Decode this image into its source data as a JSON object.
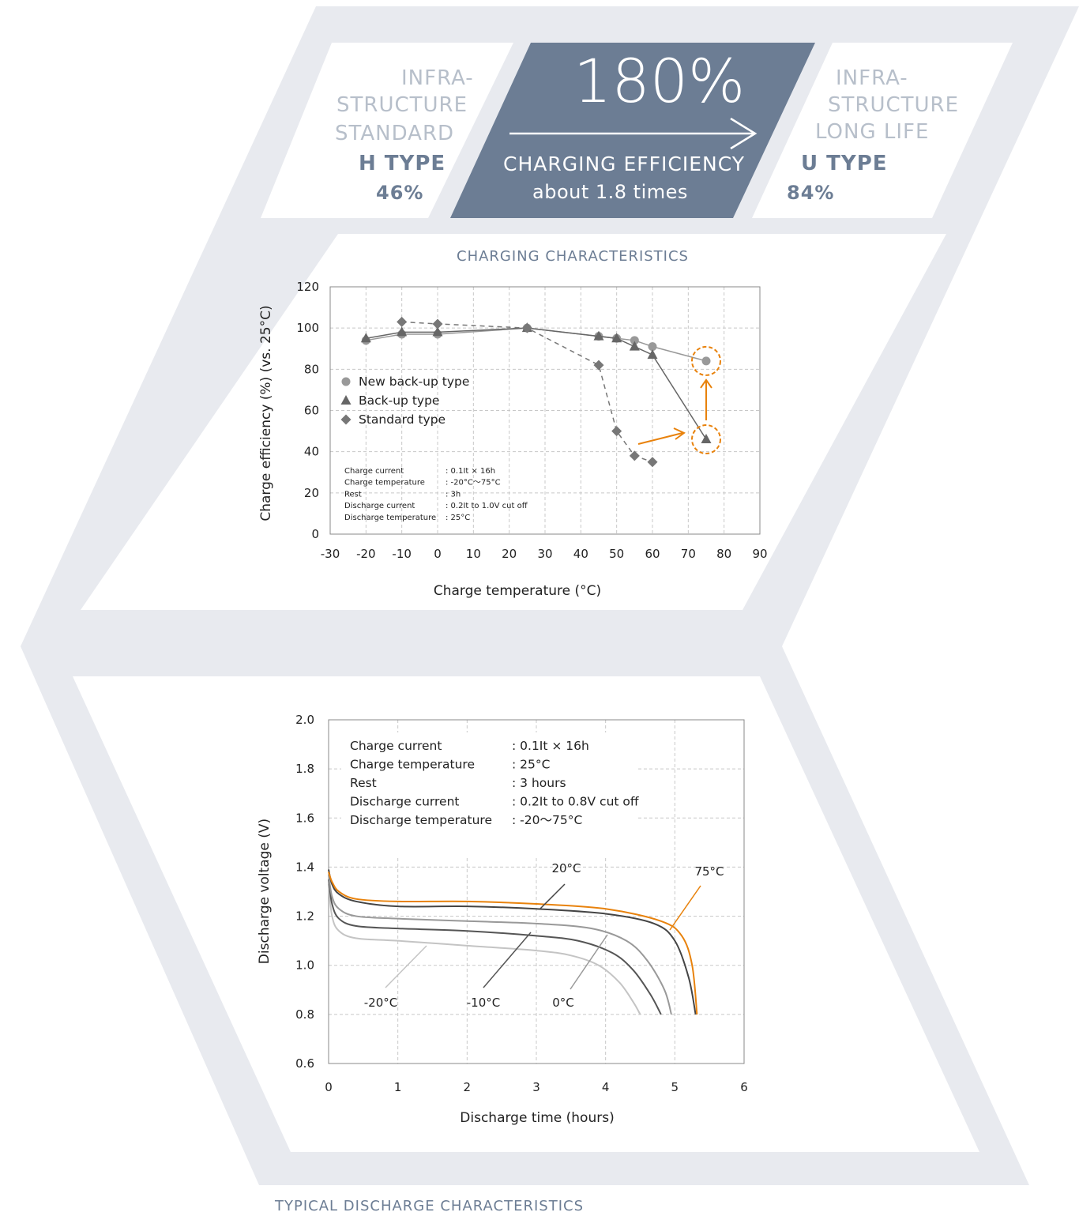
{
  "header": {
    "left": {
      "line1": "INFRA-",
      "line2": "STRUCTURE",
      "line3": "STANDARD",
      "type": "H TYPE",
      "value": "46%"
    },
    "middle": {
      "value": "180%",
      "label": "CHARGING EFFICIENCY",
      "sub": "about 1.8 times"
    },
    "right": {
      "line1": "INFRA-",
      "line2": "STRUCTURE",
      "line3": "LONG LIFE",
      "type": "U TYPE",
      "value": "84%"
    }
  },
  "colors": {
    "panel_bg": "#e8eaef",
    "accent_blue": "#6c7d94",
    "light_text": "#b7bfca",
    "orange": "#e8820c"
  },
  "chart_data": [
    {
      "type": "line",
      "title": "CHARGING CHARACTERISTICS",
      "xlabel": "Charge temperature (°C)",
      "ylabel": "Charge efficiency (%) (vs. 25°C)",
      "xlim": [
        -30,
        90
      ],
      "ylim": [
        0,
        120
      ],
      "xticks": [
        "-30",
        "-20",
        "-10",
        "0",
        "10",
        "20",
        "30",
        "40",
        "50",
        "60",
        "70",
        "80",
        "90"
      ],
      "yticks": [
        "0",
        "20",
        "40",
        "60",
        "80",
        "100",
        "120"
      ],
      "grid": true,
      "legend_position": "middle-left",
      "series": [
        {
          "name": "New back-up type",
          "marker": "circle",
          "x": [
            -20,
            -10,
            0,
            25,
            45,
            50,
            55,
            60,
            75
          ],
          "values": [
            94,
            97,
            97,
            100,
            96,
            95,
            94,
            91,
            84
          ]
        },
        {
          "name": "Back-up type",
          "marker": "triangle",
          "x": [
            -20,
            -10,
            0,
            25,
            45,
            50,
            55,
            60,
            75
          ],
          "values": [
            95,
            98,
            98,
            100,
            96,
            95,
            91,
            87,
            46
          ]
        },
        {
          "name": "Standard type",
          "marker": "diamond",
          "dashed": true,
          "x": [
            -10,
            0,
            25,
            45,
            50,
            55,
            60
          ],
          "values": [
            103,
            102,
            100,
            82,
            50,
            38,
            35
          ]
        }
      ],
      "conditions": [
        {
          "label": "Charge current",
          "value": ": 0.1It × 16h"
        },
        {
          "label": "Charge temperature",
          "value": ": -20°C〜75°C"
        },
        {
          "label": "Rest",
          "value": ": 3h"
        },
        {
          "label": "Discharge current",
          "value": ": 0.2It to 1.0V cut off"
        },
        {
          "label": "Discharge temperature",
          "value": ": 25°C"
        }
      ]
    },
    {
      "type": "line",
      "title": "TYPICAL DISCHARGE CHARACTERISTICS",
      "xlabel": "Discharge time (hours)",
      "ylabel": "Discharge voltage (V)",
      "xlim": [
        0,
        6
      ],
      "ylim": [
        0.6,
        2.0
      ],
      "xticks": [
        "0",
        "1",
        "2",
        "3",
        "4",
        "5",
        "6"
      ],
      "yticks": [
        "0.6",
        "0.8",
        "1.0",
        "1.2",
        "1.4",
        "1.6",
        "1.8",
        "2.0"
      ],
      "grid": true,
      "series": [
        {
          "name": "-20°C",
          "color": "#c4c4c4",
          "x": [
            0,
            0.05,
            0.15,
            0.4,
            1,
            2,
            3,
            3.5,
            3.9,
            4.2,
            4.4,
            4.5
          ],
          "values": [
            1.33,
            1.2,
            1.14,
            1.11,
            1.1,
            1.08,
            1.06,
            1.04,
            1.0,
            0.93,
            0.85,
            0.8
          ]
        },
        {
          "name": "-10°C",
          "color": "#555555",
          "x": [
            0,
            0.05,
            0.15,
            0.4,
            1,
            2,
            3,
            3.6,
            4.1,
            4.4,
            4.65,
            4.8
          ],
          "values": [
            1.35,
            1.25,
            1.19,
            1.16,
            1.15,
            1.14,
            1.12,
            1.1,
            1.05,
            0.98,
            0.88,
            0.8
          ]
        },
        {
          "name": "0°C",
          "color": "#999999",
          "x": [
            0,
            0.05,
            0.15,
            0.4,
            1,
            2,
            3,
            3.8,
            4.3,
            4.6,
            4.85,
            4.95
          ],
          "values": [
            1.37,
            1.28,
            1.23,
            1.2,
            1.19,
            1.18,
            1.17,
            1.15,
            1.1,
            1.02,
            0.9,
            0.8
          ]
        },
        {
          "name": "20°C",
          "color": "#444444",
          "x": [
            0,
            0.05,
            0.15,
            0.4,
            1,
            2,
            3,
            4,
            4.7,
            5.0,
            5.2,
            5.3
          ],
          "values": [
            1.39,
            1.33,
            1.29,
            1.26,
            1.24,
            1.24,
            1.23,
            1.21,
            1.17,
            1.1,
            0.95,
            0.8
          ]
        },
        {
          "name": "75°C",
          "color": "#e8820c",
          "x": [
            0,
            0.05,
            0.15,
            0.4,
            1,
            2,
            3,
            4,
            4.8,
            5.1,
            5.25,
            5.32
          ],
          "values": [
            1.38,
            1.34,
            1.3,
            1.27,
            1.26,
            1.26,
            1.25,
            1.23,
            1.18,
            1.12,
            1.0,
            0.8
          ]
        }
      ],
      "conditions": [
        {
          "label": "Charge current",
          "value": ": 0.1It × 16h"
        },
        {
          "label": "Charge temperature",
          "value": ": 25°C"
        },
        {
          "label": "Rest",
          "value": ": 3 hours"
        },
        {
          "label": "Discharge current",
          "value": ": 0.2It to 0.8V cut off"
        },
        {
          "label": "Discharge temperature",
          "value": ": -20〜75°C"
        }
      ]
    }
  ]
}
